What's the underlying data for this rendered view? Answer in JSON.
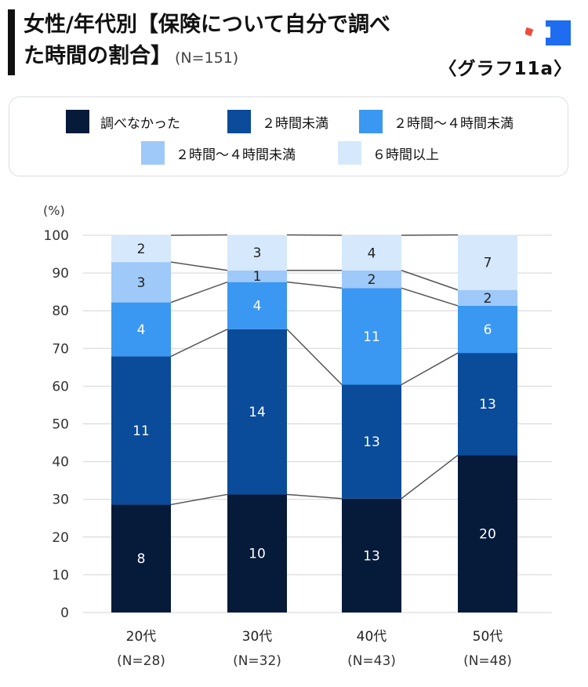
{
  "header": {
    "title_line1": "女性/年代別【保険について自分で調べ",
    "title_line2": "た時間の割合】",
    "sample": "(N=151)",
    "graph_label": "〈グラフ11a〉"
  },
  "colors": {
    "never": "#061a3a",
    "lt2h": "#0a4b9a",
    "2to4h_a": "#3a97f2",
    "2to4h_b": "#9ec9f8",
    "6hplus": "#d6e8fb",
    "connector": "#555555",
    "grid": "#d4d4d4",
    "logo_blue": "#1e6cf0",
    "logo_red": "#f04a3a"
  },
  "chart_data": {
    "type": "bar",
    "stacked": true,
    "title": "女性/年代別【保険について自分で調べた時間の割合】",
    "ylabel": "(%)",
    "ylim": [
      0,
      100
    ],
    "yticks": [
      0,
      10,
      20,
      30,
      40,
      50,
      60,
      70,
      80,
      90,
      100
    ],
    "categories": [
      "20代",
      "30代",
      "40代",
      "50代"
    ],
    "category_n": [
      "(N=28)",
      "(N=32)",
      "(N=43)",
      "(N=48)"
    ],
    "series": [
      {
        "name": "調べなかった",
        "color_key": "never",
        "percent": [
          28.6,
          31.3,
          30.2,
          41.7
        ],
        "labels": [
          8,
          10,
          13,
          20
        ]
      },
      {
        "name": "２時間未満",
        "color_key": "lt2h",
        "percent": [
          39.3,
          43.8,
          30.2,
          27.1
        ],
        "labels": [
          11,
          14,
          13,
          13
        ]
      },
      {
        "name": "２時間〜４時間未満",
        "color_key": "2to4h_a",
        "percent": [
          14.3,
          12.5,
          25.6,
          12.5
        ],
        "labels": [
          4,
          4,
          11,
          6
        ]
      },
      {
        "name": "２時間〜４時間未満",
        "color_key": "2to4h_b",
        "percent": [
          10.7,
          3.1,
          4.7,
          4.2
        ],
        "labels": [
          3,
          1,
          2,
          2
        ]
      },
      {
        "name": "６時間以上",
        "color_key": "6hplus",
        "percent": [
          7.1,
          9.4,
          9.3,
          14.6
        ],
        "labels": [
          2,
          3,
          4,
          7
        ]
      }
    ],
    "legend": [
      "調べなかった",
      "２時間未満",
      "２時間〜４時間未満",
      "２時間〜４時間未満",
      "６時間以上"
    ],
    "grid": true,
    "connector_lines": true
  }
}
